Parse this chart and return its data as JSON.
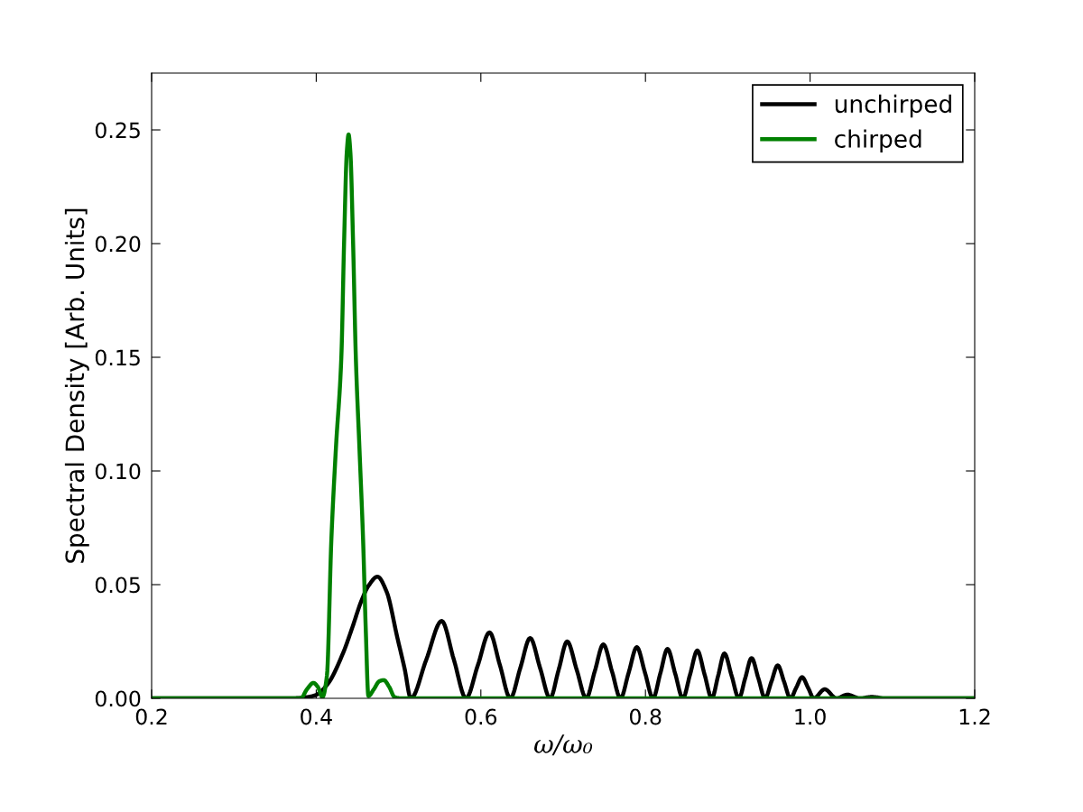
{
  "chart_data": {
    "type": "line",
    "xlabel": "ω/ω₀",
    "ylabel": "Spectral Density [Arb. Units]",
    "xlim": [
      0.2,
      1.2
    ],
    "ylim": [
      0,
      0.275
    ],
    "xticks": [
      0.2,
      0.4,
      0.6,
      0.8,
      {
        "value": 1.0,
        "label": "1.0"
      },
      1.2
    ],
    "yticks": [
      {
        "value": 0,
        "label": "0.00"
      },
      {
        "value": 0.05,
        "label": "0.05"
      },
      {
        "value": 0.1,
        "label": "0.10"
      },
      {
        "value": 0.15,
        "label": "0.15"
      },
      {
        "value": 0.2,
        "label": "0.20"
      },
      {
        "value": 0.25,
        "label": "0.25"
      }
    ],
    "legend": "top right",
    "line_style": "solid",
    "series": [
      {
        "name": "unchirped",
        "color": "#000000",
        "x": [
          0.2,
          0.37,
          0.3888,
          0.3998,
          0.4141,
          0.4327,
          0.4437,
          0.4547,
          0.4635,
          0.4744,
          0.4854,
          0.4986,
          0.5074,
          0.515,
          0.5337,
          0.5524,
          0.5672,
          0.582,
          0.5963,
          0.6105,
          0.6232,
          0.6358,
          0.6479,
          0.6599,
          0.672,
          0.6841,
          0.6945,
          0.7049,
          0.7165,
          0.728,
          0.7384,
          0.7488,
          0.7593,
          0.7697,
          0.7796,
          0.7895,
          0.7994,
          0.8092,
          0.818,
          0.8268,
          0.8361,
          0.8454,
          0.8542,
          0.863,
          0.8718,
          0.8806,
          0.8883,
          0.8959,
          0.9047,
          0.9135,
          0.9212,
          0.9289,
          0.9371,
          0.9453,
          0.953,
          0.9607,
          0.9684,
          0.9761,
          0.9832,
          0.9903,
          0.9975,
          1.0046,
          1.0178,
          1.032,
          1.0452,
          1.0606,
          1.0749,
          1.0913,
          1.2
        ],
        "values": [
          0,
          0,
          0.0005,
          0.0015,
          0.0064,
          0.02,
          0.031,
          0.0427,
          0.0495,
          0.0535,
          0.047,
          0.0266,
          0.013,
          0,
          0.017,
          0.034,
          0.017,
          0,
          0.0145,
          0.029,
          0.0145,
          0,
          0.0133,
          0.0265,
          0.0133,
          0,
          0.0125,
          0.025,
          0.0125,
          0,
          0.0119,
          0.0237,
          0.0119,
          0,
          0.0113,
          0.0225,
          0.0113,
          0,
          0.0109,
          0.0217,
          0.0109,
          0,
          0.0105,
          0.021,
          0.0105,
          0,
          0.0099,
          0.0197,
          0.0099,
          0,
          0.0089,
          0.0177,
          0.0089,
          0,
          0.0073,
          0.0145,
          0.0073,
          0,
          0.0047,
          0.0093,
          0.0047,
          0,
          0.004,
          0,
          0.0016,
          0,
          0.0006,
          0,
          0
        ]
      },
      {
        "name": "chirped",
        "color": "#008000",
        "x": [
          0.2,
          0.37,
          0.3811,
          0.3888,
          0.3965,
          0.402,
          0.4075,
          0.413,
          0.4184,
          0.4239,
          0.4305,
          0.4338,
          0.4371,
          0.4393,
          0.4415,
          0.4448,
          0.4481,
          0.4525,
          0.4569,
          0.4602,
          0.4634,
          0.47,
          0.4766,
          0.4821,
          0.4887,
          0.4953,
          0.5041,
          1.2
        ],
        "values": [
          0,
          0,
          0,
          0.004,
          0.0068,
          0.005,
          0.0005,
          0.01,
          0.07,
          0.11,
          0.15,
          0.2,
          0.24,
          0.248,
          0.24,
          0.2,
          0.15,
          0.11,
          0.07,
          0.03,
          0.001,
          0.004,
          0.0075,
          0.008,
          0.005,
          0.0005,
          0,
          0
        ]
      }
    ]
  }
}
